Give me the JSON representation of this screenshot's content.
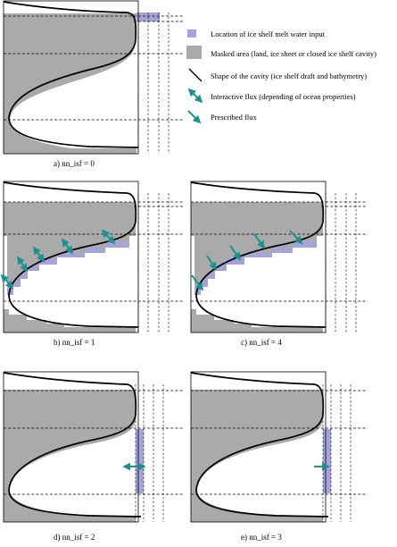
{
  "legend": {
    "melt_input": "Location of ice shelf melt water input",
    "masked_area": "Masked area (land, ice sheet or closed ice shelf cavity)",
    "cavity_shape": "Shape of the cavity (ice shelf draft and bathymetry)",
    "interactive_flux": "Interactive flux (depending of ocean properties)",
    "prescribed_flux": "Prescribed flux"
  },
  "captions": {
    "a": "a) nn_isf = 0",
    "b": "b) nn_isf = 1",
    "c": "c) nn_isf = 4",
    "d": "d) nn_isf = 2",
    "e": "e) nn_isf = 3"
  },
  "colors": {
    "mask_gray": "#aaaaaa",
    "melt_purple": "#a4a4d8",
    "flux_teal": "#1f8f8f",
    "line": "#000000"
  }
}
